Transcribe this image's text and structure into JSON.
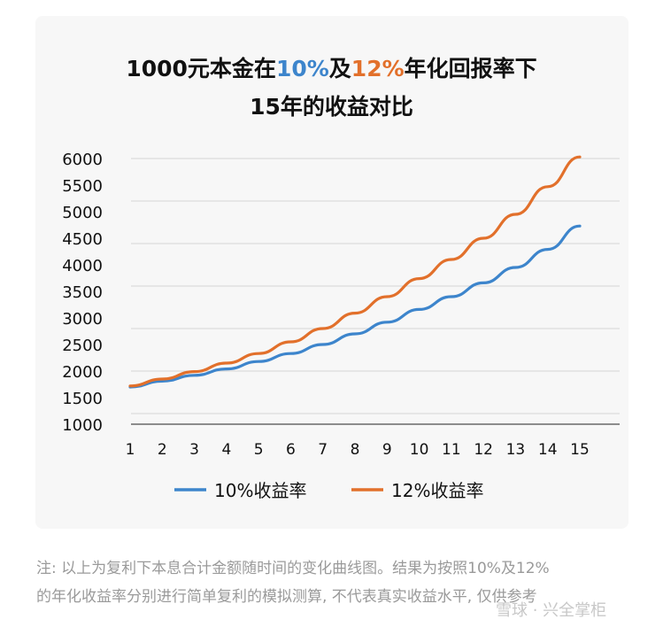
{
  "title": {
    "line1_a": "1000元本金在",
    "line1_b": "10%",
    "line1_c": "及",
    "line1_d": "12%",
    "line1_e": "年化回报率下",
    "line2": "15年的收益对比"
  },
  "chart_data": {
    "type": "line",
    "x": [
      1,
      2,
      3,
      4,
      5,
      6,
      7,
      8,
      9,
      10,
      11,
      12,
      13,
      14,
      15
    ],
    "y_ticks": [
      "6000",
      "5500",
      "5000",
      "4500",
      "4000",
      "3500",
      "3000",
      "2500",
      "2000",
      "1500",
      "1000"
    ],
    "ylim": [
      1000,
      6000
    ],
    "grid": true,
    "legend": "bottom",
    "series": [
      {
        "name": "10%收益率",
        "color": "#3d85cc",
        "values": [
          1700,
          1810,
          1920,
          2040,
          2180,
          2330,
          2500,
          2700,
          2920,
          3160,
          3400,
          3660,
          3950,
          4290,
          4730
        ]
      },
      {
        "name": "12%收益率",
        "color": "#e2702b",
        "values": [
          1720,
          1850,
          1990,
          2150,
          2330,
          2550,
          2800,
          3090,
          3400,
          3740,
          4100,
          4500,
          4950,
          5470,
          6030
        ]
      }
    ]
  },
  "note": {
    "line1": "注: 以上为复利下本息合计金额随时间的变化曲线图。结果为按照10%及12%",
    "line2": "的年化收益率分别进行简单复利的模拟测算, 不代表真实收益水平, 仅供参考"
  },
  "watermark": "雪球 · 兴全掌柜"
}
